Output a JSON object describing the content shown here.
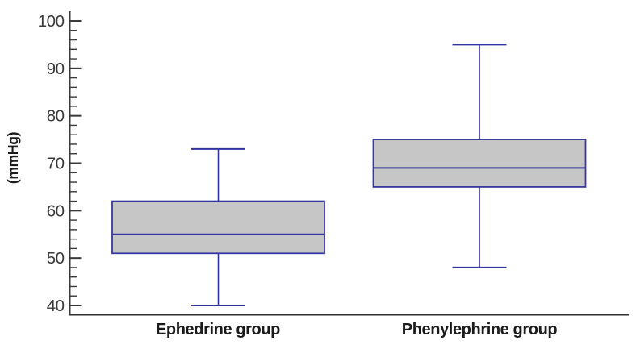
{
  "chart_data": {
    "type": "boxplot",
    "title": "",
    "ylabel": "(mmHg)",
    "xlabel": "",
    "ylim": [
      40,
      100
    ],
    "y_major_ticks": [
      40,
      50,
      60,
      70,
      80,
      90,
      100
    ],
    "y_minor_tick_step": 2,
    "grid": false,
    "legend": false,
    "categories": [
      "Ephedrine group",
      "Phenylephrine group"
    ],
    "series": [
      {
        "name": "Ephedrine group",
        "min": 40,
        "q1": 51,
        "median": 55,
        "q3": 62,
        "max": 73
      },
      {
        "name": "Phenylephrine group",
        "min": 48,
        "q1": 65,
        "median": 69,
        "q3": 75,
        "max": 95
      }
    ],
    "colors": {
      "background": "#ffffff",
      "box_fill": "#c6c6c6",
      "box_stroke": "#3838a0",
      "median_stroke": "#3838a0",
      "whisker_stroke": "#3333a0",
      "axis": "#3a3a3a",
      "tick_label": "#3a3a3a",
      "category_label": "#1a1a1a"
    }
  }
}
